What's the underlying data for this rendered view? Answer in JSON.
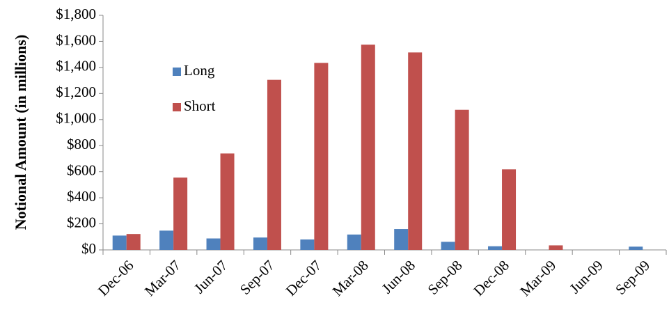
{
  "chart_data": {
    "type": "bar",
    "y_axis_label": "Notional Amount (in millions)",
    "categories": [
      "Dec-06",
      "Mar-07",
      "Jun-07",
      "Sep-07",
      "Dec-07",
      "Mar-08",
      "Jun-08",
      "Sep-08",
      "Dec-08",
      "Mar-09",
      "Jun-09",
      "Sep-09"
    ],
    "series": [
      {
        "name": "Long",
        "color": "#4f81bd",
        "values": [
          110,
          148,
          88,
          95,
          80,
          118,
          160,
          62,
          28,
          0,
          0,
          25
        ]
      },
      {
        "name": "Short",
        "color": "#c0504d",
        "values": [
          122,
          555,
          740,
          1305,
          1435,
          1575,
          1515,
          1075,
          618,
          35,
          0,
          0
        ]
      }
    ],
    "ylim": [
      0,
      1800
    ],
    "yticks": [
      {
        "value": 0,
        "label": "$0"
      },
      {
        "value": 200,
        "label": "$200"
      },
      {
        "value": 400,
        "label": "$400"
      },
      {
        "value": 600,
        "label": "$600"
      },
      {
        "value": 800,
        "label": "$800"
      },
      {
        "value": 1000,
        "label": "$1,000"
      },
      {
        "value": 1200,
        "label": "$1,200"
      },
      {
        "value": 1400,
        "label": "$1,400"
      },
      {
        "value": 1600,
        "label": "$1,600"
      },
      {
        "value": 1800,
        "label": "$1,800"
      }
    ],
    "grid": false,
    "legend": "upper left"
  }
}
